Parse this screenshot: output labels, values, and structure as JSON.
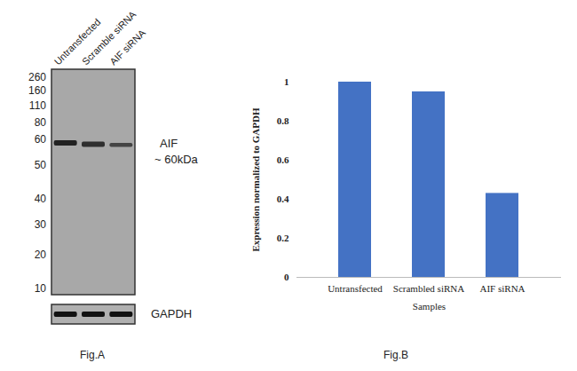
{
  "blot": {
    "lanes": [
      "Untransfected",
      "Scramble siRNA",
      "AIF siRNA"
    ],
    "marker_kda": [
      260,
      160,
      110,
      80,
      60,
      50,
      40,
      30,
      20,
      10
    ],
    "band_label": "AIF",
    "band_size": "~ 60kDa",
    "loading_control": "GAPDH",
    "caption": "Fig.A"
  },
  "chart_data": {
    "type": "bar",
    "categories": [
      "Untransfected",
      "Scrambled siRNA",
      "AIF siRNA"
    ],
    "values": [
      1,
      0.95,
      0.43
    ],
    "color": "#4472c4",
    "ylim": [
      0,
      1
    ],
    "yticks": [
      0,
      0.2,
      0.4,
      0.6,
      0.8,
      1
    ],
    "y_label": "Expression normalized to GAPDH",
    "x_label": "Samples",
    "caption": "Fig.B"
  }
}
